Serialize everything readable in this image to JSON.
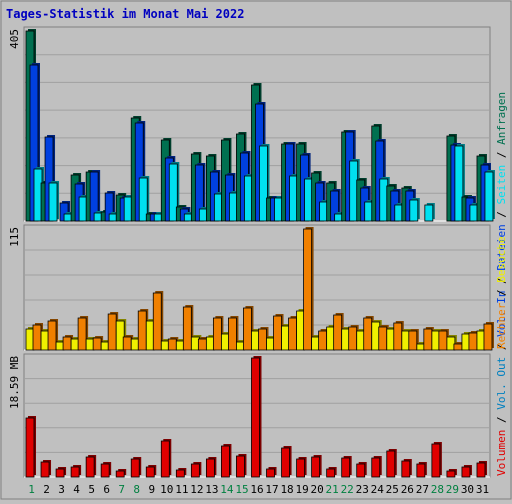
{
  "title": "Tages-Statistik im Monat Mai 2022",
  "colors": {
    "anfragen": "#007050",
    "dateien": "#0040e0",
    "seiten": "#00e0f0",
    "besuche": "#f0f000",
    "rechner": "#f08000",
    "volumen": "#e00000",
    "weekend_label": "#008040",
    "weekday_label": "#000000",
    "title": "#0000c0"
  },
  "chart_data": [
    {
      "type": "bar",
      "panel": "requests",
      "scale_label": "405",
      "ylim": [
        0,
        405
      ],
      "series": [
        {
          "name": "Anfragen",
          "key": "anfragen",
          "values": [
            405,
            80,
            0,
            98,
            105,
            20,
            55,
            220,
            15,
            172,
            30,
            142,
            138,
            172,
            185,
            290,
            50,
            165,
            165,
            102,
            80,
            190,
            88,
            202,
            75,
            70,
            0,
            0,
            182,
            52,
            138
          ]
        },
        {
          "name": "Dateien",
          "key": "dateien",
          "values": [
            332,
            178,
            38,
            78,
            105,
            60,
            50,
            208,
            15,
            135,
            25,
            120,
            105,
            98,
            145,
            250,
            50,
            165,
            140,
            80,
            65,
            190,
            70,
            170,
            65,
            65,
            0,
            0,
            162,
            48,
            120
          ]
        },
        {
          "name": "Seiten",
          "key": "seiten",
          "values": [
            110,
            80,
            15,
            52,
            18,
            15,
            52,
            92,
            15,
            122,
            15,
            25,
            58,
            60,
            95,
            160,
            50,
            95,
            90,
            40,
            15,
            128,
            40,
            90,
            35,
            45,
            35,
            0,
            160,
            35,
            105
          ]
        }
      ],
      "series_label_keys": [
        "volumen",
        "out",
        "in",
        "dateien",
        "seiten",
        "anfragen"
      ]
    },
    {
      "type": "bar",
      "panel": "visits",
      "scale_label": "115",
      "ylim": [
        0,
        115
      ],
      "series": [
        {
          "name": "Besuche",
          "key": "besuche",
          "values": [
            20,
            18,
            8,
            10,
            10,
            8,
            28,
            10,
            28,
            9,
            9,
            12,
            12,
            15,
            8,
            18,
            11,
            23,
            37,
            12,
            22,
            20,
            18,
            27,
            20,
            18,
            6,
            18,
            12,
            15,
            18
          ]
        },
        {
          "name": "Rechner",
          "key": "rechner",
          "values": [
            24,
            28,
            12,
            30,
            11,
            34,
            12,
            37,
            54,
            10,
            41,
            10,
            30,
            30,
            40,
            20,
            32,
            30,
            115,
            18,
            33,
            22,
            30,
            22,
            26,
            18,
            20,
            18,
            6,
            16,
            25
          ]
        }
      ]
    },
    {
      "type": "bar",
      "panel": "volume",
      "scale_label": "18.59 MB",
      "ylim": [
        0,
        18.59
      ],
      "series": [
        {
          "name": "Volumen",
          "key": "volumen",
          "values": [
            9.2,
            2.4,
            1.2,
            1.6,
            3.2,
            2.0,
            1.0,
            2.8,
            1.6,
            5.6,
            1.1,
            2.0,
            2.8,
            4.8,
            3.3,
            18.59,
            1.2,
            4.6,
            2.8,
            3.2,
            1.3,
            3.0,
            2.0,
            3.0,
            4.0,
            2.5,
            2.0,
            5.2,
            1.0,
            1.5,
            2.2
          ]
        }
      ]
    }
  ],
  "days": [
    "1",
    "2",
    "3",
    "4",
    "5",
    "6",
    "7",
    "8",
    "9",
    "10",
    "11",
    "12",
    "13",
    "14",
    "15",
    "16",
    "17",
    "18",
    "19",
    "20",
    "21",
    "22",
    "23",
    "24",
    "25",
    "26",
    "27",
    "28",
    "29",
    "30",
    "31"
  ],
  "weekend_days": [
    "1",
    "7",
    "8",
    "14",
    "15",
    "21",
    "22",
    "28",
    "29"
  ],
  "right_labels": [
    {
      "key": "volumen",
      "text": "Volumen"
    },
    {
      "key": "sep",
      "text": " / "
    },
    {
      "key": "out",
      "text": "Vol. Out"
    },
    {
      "key": "sep",
      "text": " / "
    },
    {
      "key": "in",
      "text": "Vol. In"
    },
    {
      "key": "sep",
      "text": " / "
    },
    {
      "key": "dateien",
      "text": "Dateien"
    },
    {
      "key": "sep",
      "text": " / "
    },
    {
      "key": "seiten",
      "text": "Seiten"
    },
    {
      "key": "sep",
      "text": " / "
    },
    {
      "key": "anfragen",
      "text": "Anfragen"
    }
  ],
  "right_labels_mid": [
    {
      "key": "rechner",
      "text": "Rechner"
    },
    {
      "key": "sep",
      "text": " / "
    },
    {
      "key": "besuche",
      "text": "Besuche"
    }
  ]
}
